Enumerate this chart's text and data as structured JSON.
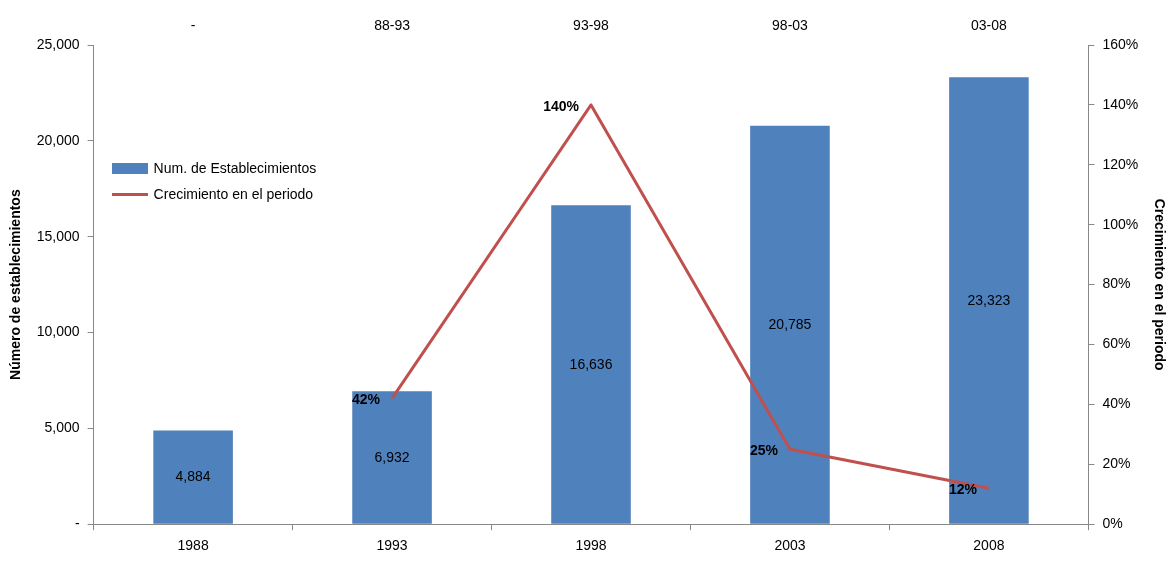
{
  "chart_data": {
    "type": "bar",
    "ylabel": "Número de establecimientos",
    "y2label": "Crecimiento en el periodo",
    "categories": [
      "1988",
      "1993",
      "1998",
      "2003",
      "2008"
    ],
    "series": [
      {
        "name": "Num. de Establecimientos",
        "color": "#4f81bd",
        "values": [
          4884,
          6932,
          16636,
          20785,
          23323
        ],
        "value_labels": [
          "4,884",
          "6,932",
          "16,636",
          "20,785",
          "23,323"
        ]
      },
      {
        "name": "Crecimiento en el periodo",
        "type": "line",
        "axis": "y2",
        "color": "#c0504d",
        "values": [
          null,
          42,
          140,
          25,
          12
        ],
        "value_labels": [
          null,
          "42%",
          "140%",
          "25%",
          "12%"
        ]
      }
    ],
    "ylim": [
      0,
      25000
    ],
    "yticks": [
      {
        "value": 0,
        "label": "-"
      },
      {
        "value": 5000,
        "label": "5,000"
      },
      {
        "value": 10000,
        "label": "10,000"
      },
      {
        "value": 15000,
        "label": "15,000"
      },
      {
        "value": 20000,
        "label": "20,000"
      },
      {
        "value": 25000,
        "label": "25,000"
      }
    ],
    "y2lim": [
      0,
      160
    ],
    "y2ticks": [
      {
        "value": 0,
        "label": "0%"
      },
      {
        "value": 20,
        "label": "20%"
      },
      {
        "value": 40,
        "label": "40%"
      },
      {
        "value": 60,
        "label": "60%"
      },
      {
        "value": 80,
        "label": "80%"
      },
      {
        "value": 100,
        "label": "100%"
      },
      {
        "value": 120,
        "label": "120%"
      },
      {
        "value": 140,
        "label": "140%"
      },
      {
        "value": 160,
        "label": "160%"
      }
    ],
    "annotations": [
      "-",
      "88-93",
      "93-98",
      "98-03",
      "03-08"
    ],
    "legend": "top left",
    "grid": false,
    "marker": "none",
    "line_style": "solid"
  }
}
